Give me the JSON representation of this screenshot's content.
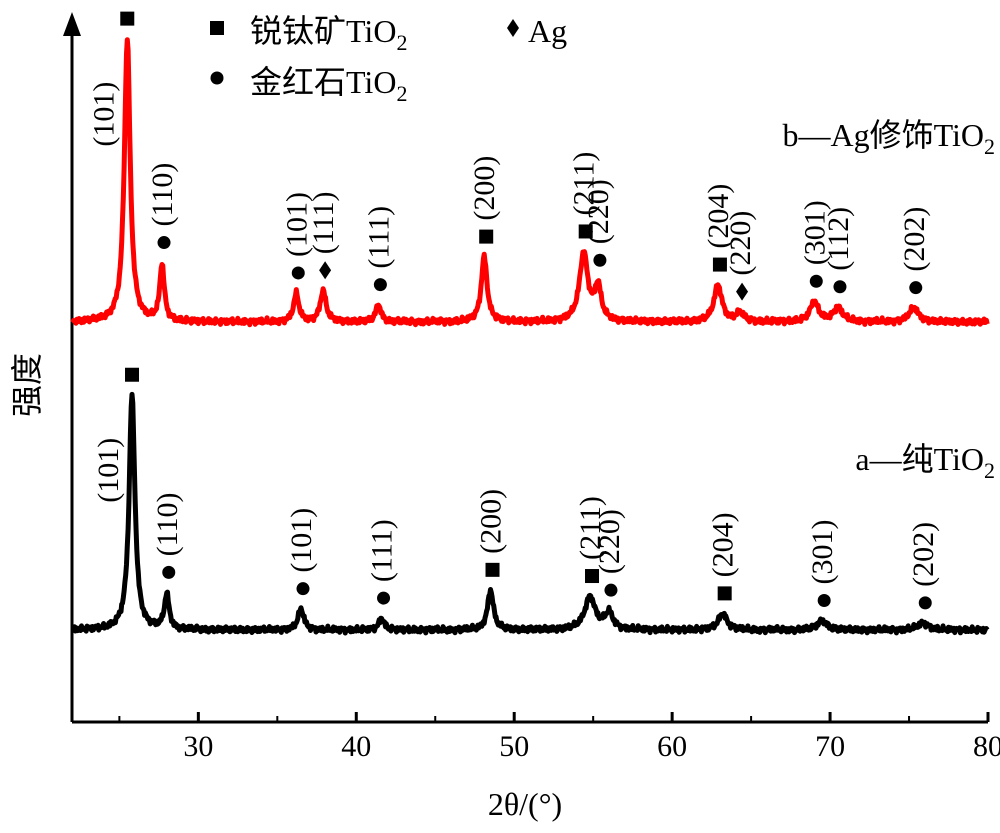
{
  "chart_data": {
    "type": "line",
    "title": "",
    "xlabel": "2θ/(°)",
    "ylabel": "强度",
    "xlim": [
      22,
      80
    ],
    "xticks": [
      "30",
      "40",
      "50",
      "60",
      "70",
      "80"
    ],
    "grid": false,
    "legend": {
      "placement": "top-left",
      "entries": [
        {
          "marker": "square",
          "text": "锐钛矿TiO",
          "sub": "2"
        },
        {
          "marker": "diamond",
          "text": "Ag",
          "sub": ""
        },
        {
          "marker": "circle",
          "text": "金红石TiO",
          "sub": "2"
        }
      ]
    },
    "series": [
      {
        "name": "a—纯TiO2",
        "label_text": "a—纯TiO",
        "label_sub": "2",
        "color": "#000000",
        "peaks": [
          {
            "x": 25.8,
            "h": 1.0,
            "w": 0.22,
            "hkl": "(101)",
            "phase": "anatase"
          },
          {
            "x": 28.0,
            "h": 0.15,
            "w": 0.18,
            "hkl": "(110)",
            "phase": "rutile"
          },
          {
            "x": 36.5,
            "h": 0.09,
            "w": 0.22,
            "hkl": "(101)",
            "phase": "rutile"
          },
          {
            "x": 41.6,
            "h": 0.05,
            "w": 0.2,
            "hkl": "(111)",
            "phase": "rutile"
          },
          {
            "x": 48.5,
            "h": 0.17,
            "w": 0.22,
            "hkl": "(200)",
            "phase": "anatase"
          },
          {
            "x": 54.8,
            "h": 0.14,
            "w": 0.4,
            "hkl": "(211)",
            "phase": "anatase"
          },
          {
            "x": 56.0,
            "h": 0.07,
            "w": 0.3,
            "hkl": "(220)",
            "phase": "rutile"
          },
          {
            "x": 63.2,
            "h": 0.07,
            "w": 0.32,
            "hkl": "(204)",
            "phase": "anatase"
          },
          {
            "x": 69.5,
            "h": 0.04,
            "w": 0.35,
            "hkl": "(301)",
            "phase": "rutile"
          },
          {
            "x": 75.9,
            "h": 0.03,
            "w": 0.4,
            "hkl": "(202)",
            "phase": "rutile"
          }
        ]
      },
      {
        "name": "b—Ag修饰TiO2",
        "label_text": "b—Ag修饰TiO",
        "label_sub": "2",
        "color": "#ff0000",
        "peaks": [
          {
            "x": 25.5,
            "h": 1.0,
            "w": 0.22,
            "hkl": "(101)",
            "phase": "anatase"
          },
          {
            "x": 27.7,
            "h": 0.2,
            "w": 0.17,
            "hkl": "(110)",
            "phase": "rutile"
          },
          {
            "x": 36.2,
            "h": 0.1,
            "w": 0.2,
            "hkl": "(101)",
            "phase": "rutile"
          },
          {
            "x": 37.9,
            "h": 0.11,
            "w": 0.22,
            "hkl": "(111)",
            "phase": "Ag"
          },
          {
            "x": 41.4,
            "h": 0.06,
            "w": 0.2,
            "hkl": "(111)",
            "phase": "rutile"
          },
          {
            "x": 48.1,
            "h": 0.23,
            "w": 0.22,
            "hkl": "(200)",
            "phase": "anatase"
          },
          {
            "x": 54.4,
            "h": 0.24,
            "w": 0.32,
            "hkl": "(211)",
            "phase": "anatase"
          },
          {
            "x": 55.3,
            "h": 0.12,
            "w": 0.25,
            "hkl": "(220)",
            "phase": "rutile"
          },
          {
            "x": 62.9,
            "h": 0.13,
            "w": 0.3,
            "hkl": "(204)",
            "phase": "anatase"
          },
          {
            "x": 64.3,
            "h": 0.03,
            "w": 0.3,
            "hkl": "(220)",
            "phase": "Ag"
          },
          {
            "x": 69.0,
            "h": 0.07,
            "w": 0.32,
            "hkl": "(301)",
            "phase": "rutile"
          },
          {
            "x": 70.5,
            "h": 0.05,
            "w": 0.35,
            "hkl": "(112)",
            "phase": "rutile"
          },
          {
            "x": 75.3,
            "h": 0.05,
            "w": 0.35,
            "hkl": "(202)",
            "phase": "rutile"
          }
        ]
      }
    ]
  }
}
